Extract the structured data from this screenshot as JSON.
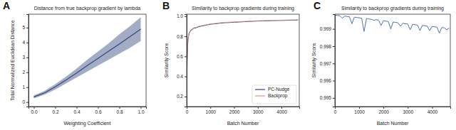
{
  "chart_data": [
    {
      "type": "line",
      "panel_label": "A",
      "title": "Distance from true backprop gradient by lambda",
      "x_label": "Weighting Coefficient",
      "y_label": "Total Normalized Euclidean Distance",
      "x": [
        0,
        0.1,
        0.2,
        0.3,
        0.4,
        0.5,
        0.6,
        0.7,
        0.8,
        0.9,
        1.0
      ],
      "series": [
        {
          "color": "#34477f",
          "values": [
            0.35,
            0.62,
            1.02,
            1.48,
            1.95,
            2.45,
            2.93,
            3.42,
            3.9,
            4.4,
            4.9
          ],
          "lower": [
            0.25,
            0.5,
            0.85,
            1.25,
            1.65,
            2.05,
            2.45,
            2.85,
            3.25,
            3.65,
            4.1
          ],
          "upper": [
            0.45,
            0.75,
            1.2,
            1.7,
            2.25,
            2.85,
            3.4,
            3.95,
            4.55,
            5.1,
            5.7
          ]
        }
      ],
      "xlim": [
        -0.05,
        1.05
      ],
      "ylim": [
        -0.3,
        5.9
      ],
      "xticks": [
        {
          "value": 0,
          "label": "0.0"
        },
        0.2,
        0.4,
        0.6,
        0.8,
        {
          "value": 1,
          "label": "1.0"
        }
      ],
      "yticks": [
        0,
        1,
        2,
        3,
        4,
        5
      ],
      "grid": false
    },
    {
      "type": "line",
      "panel_label": "B",
      "title": "Similarity to backprop gradients during training",
      "x_label": "Batch Number",
      "y_label": "Similarity Score",
      "x": [
        0,
        10,
        20,
        40,
        60,
        80,
        100,
        150,
        200,
        300,
        400,
        500,
        600,
        700,
        800,
        900,
        1000,
        1200,
        1400,
        1600,
        1800,
        2000,
        2200,
        2400,
        2600,
        2800,
        3000,
        3200,
        3400,
        3600,
        3800,
        4000,
        4200,
        4400,
        4600,
        4700
      ],
      "series": [
        {
          "name": "PC-Nudge",
          "color": "#2f3e6e",
          "values": [
            0.15,
            0.35,
            0.55,
            0.7,
            0.77,
            0.8,
            0.83,
            0.85,
            0.86,
            0.88,
            0.885,
            0.895,
            0.9,
            0.905,
            0.91,
            0.915,
            0.92,
            0.925,
            0.93,
            0.935,
            0.937,
            0.94,
            0.942,
            0.945,
            0.947,
            0.95,
            0.952,
            0.953,
            0.955,
            0.956,
            0.957,
            0.958,
            0.959,
            0.96,
            0.961,
            0.962
          ]
        },
        {
          "name": "Backprop",
          "color": "#e8928a",
          "values": [
            0.14,
            0.36,
            0.56,
            0.71,
            0.78,
            0.81,
            0.835,
            0.855,
            0.87,
            0.885,
            0.89,
            0.9,
            0.905,
            0.91,
            0.915,
            0.918,
            0.925,
            0.928,
            0.935,
            0.938,
            0.941,
            0.944,
            0.946,
            0.948,
            0.95,
            0.953,
            0.955,
            0.956,
            0.958,
            0.959,
            0.96,
            0.961,
            0.962,
            0.963,
            0.963,
            0.964
          ]
        }
      ],
      "xlim": [
        0,
        4750
      ],
      "ylim": [
        0.1,
        1.02
      ],
      "xticks": [
        0,
        1000,
        2000,
        3000,
        4000
      ],
      "yticks": [
        0.2,
        0.4,
        0.6,
        0.8,
        {
          "value": 1,
          "label": "1.0"
        }
      ],
      "legend": "lower right",
      "grid": false
    },
    {
      "type": "line",
      "panel_label": "C",
      "title": "Similarity to backprop gradients during training",
      "x_label": "Batch Number",
      "y_label": "Similarity Score",
      "x": [
        0,
        100,
        200,
        300,
        400,
        500,
        600,
        700,
        800,
        900,
        1000,
        1100,
        1200,
        1300,
        1400,
        1500,
        1600,
        1700,
        1800,
        1900,
        2000,
        2100,
        2200,
        2300,
        2400,
        2500,
        2600,
        2700,
        2800,
        2900,
        3000,
        3100,
        3200,
        3300,
        3400,
        3500,
        3600,
        3700,
        3800,
        3900,
        4000,
        4100,
        4200,
        4300,
        4400,
        4500,
        4600,
        4700
      ],
      "series": [
        {
          "color": "#4c72b0",
          "values": [
            0.9998,
            0.99978,
            0.99976,
            0.99962,
            0.99974,
            0.99972,
            0.9997,
            0.9993,
            0.99968,
            0.99966,
            0.99964,
            0.99962,
            0.99885,
            0.9996,
            0.99958,
            0.99955,
            0.9995,
            0.99953,
            0.9995,
            0.9992,
            0.99948,
            0.99945,
            0.99942,
            0.999,
            0.9994,
            0.99938,
            0.99935,
            0.99915,
            0.99933,
            0.9993,
            0.99928,
            0.99895,
            0.99926,
            0.99924,
            0.99922,
            0.9989,
            0.9992,
            0.99918,
            0.99916,
            0.9989,
            0.99914,
            0.99912,
            0.9991,
            0.99875,
            0.99908,
            0.99906,
            0.99895,
            0.99905
          ]
        }
      ],
      "xlim": [
        0,
        4750
      ],
      "ylim": [
        0.9945,
        0.99985
      ],
      "xticks": [
        0,
        1000,
        2000,
        3000,
        4000
      ],
      "yticks": [
        0.995,
        0.996,
        0.997,
        0.998,
        0.999
      ],
      "grid": false
    }
  ]
}
